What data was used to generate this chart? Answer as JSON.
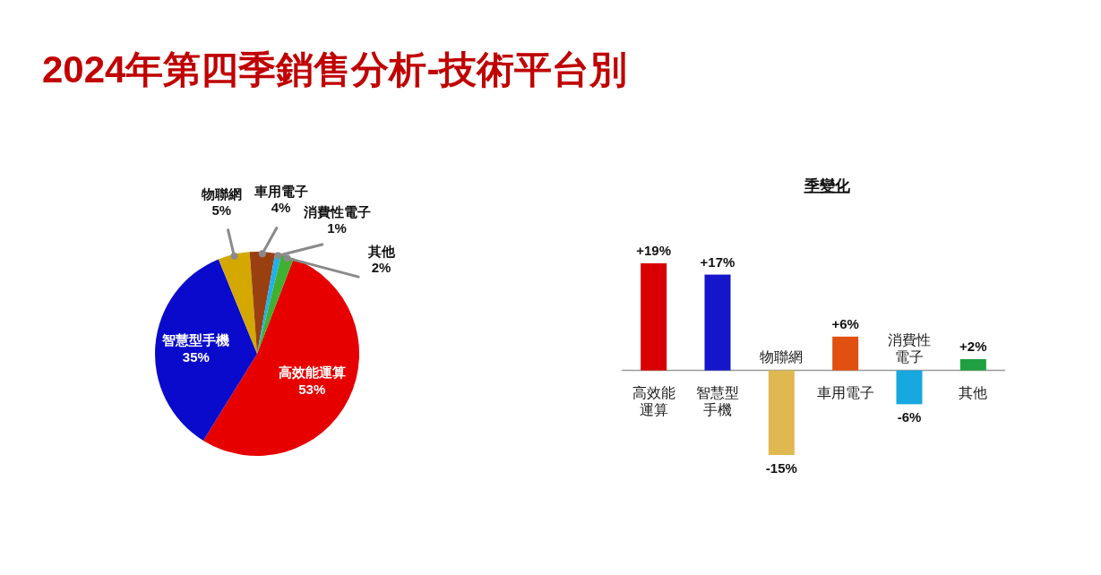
{
  "chart_data": [
    {
      "type": "pie",
      "title": "2024年第四季銷售分析-技術平台別",
      "categories": [
        "高效能運算",
        "智慧型手機",
        "物聯網",
        "車用電子",
        "消費性電子",
        "其他"
      ],
      "values": [
        53,
        35,
        5,
        4,
        1,
        2
      ],
      "value_labels": [
        "53%",
        "35%",
        "5%",
        "4%",
        "1%",
        "2%"
      ],
      "colors": [
        "#e60000",
        "#0a0acc",
        "#d4a800",
        "#9a4010",
        "#20b0f0",
        "#40b030"
      ]
    },
    {
      "type": "bar",
      "title": "季變化",
      "categories": [
        "高效能運算",
        "智慧型手機",
        "物聯網",
        "車用電子",
        "消費性電子",
        "其他"
      ],
      "values": [
        19,
        17,
        -15,
        6,
        -6,
        2
      ],
      "value_labels": [
        "+19%",
        "+17%",
        "-15%",
        "+6%",
        "-6%",
        "+2%"
      ],
      "colors": [
        "#d80000",
        "#1515cc",
        "#e0b850",
        "#e05010",
        "#18a8e0",
        "#20a040"
      ]
    }
  ]
}
